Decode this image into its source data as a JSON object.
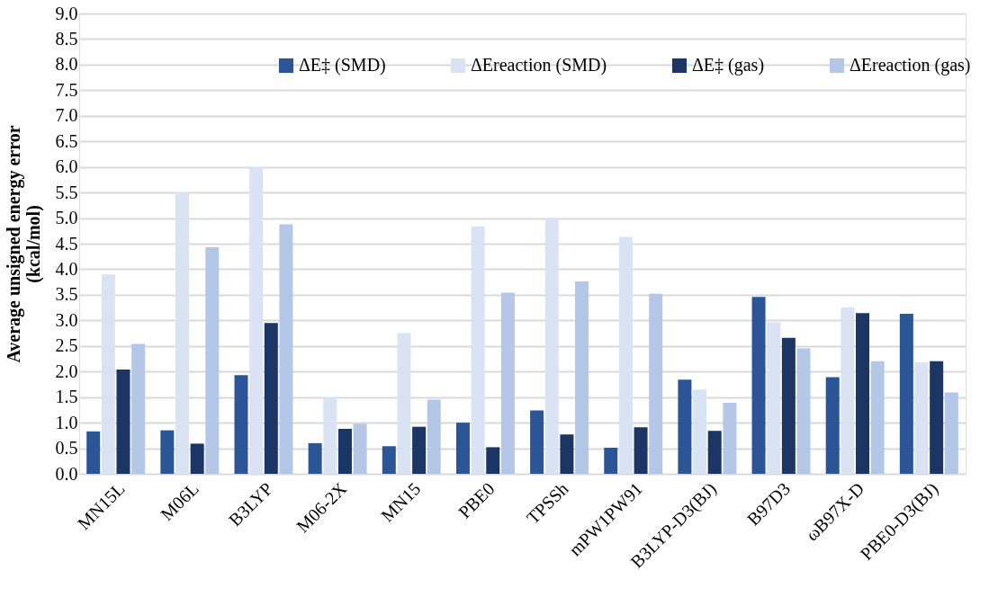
{
  "chart_data": {
    "type": "bar",
    "ylabel": "Average  unsigned energy error\n(kcal/mol)",
    "categories": [
      "MN15L",
      "M06L",
      "B3LYP",
      "M06-2X",
      "MN15",
      "PBE0",
      "TPSSh",
      "mPW1PW91",
      "B3LYP-D3(BJ)",
      "B97D3",
      "ωB97X-D",
      "PBE0-D3(BJ)"
    ],
    "series": [
      {
        "name": "ΔE‡ (SMD)",
        "color": "#2b5597",
        "values": [
          0.83,
          0.85,
          1.93,
          0.6,
          0.54,
          1.0,
          1.24,
          0.51,
          1.84,
          3.46,
          1.89,
          3.13
        ]
      },
      {
        "name": "ΔEreaction (SMD)",
        "color": "#dae3f3",
        "values": [
          3.9,
          5.5,
          6.0,
          1.5,
          2.75,
          4.84,
          5.0,
          4.63,
          1.65,
          2.96,
          3.25,
          2.18
        ]
      },
      {
        "name": "ΔE‡ (gas)",
        "color": "#1b3664",
        "values": [
          2.04,
          0.59,
          2.95,
          0.88,
          0.92,
          0.52,
          0.77,
          0.91,
          0.84,
          2.66,
          3.14,
          2.2
        ]
      },
      {
        "name": "ΔEreaction (gas)",
        "color": "#b4c7e7",
        "values": [
          2.54,
          4.43,
          4.88,
          0.98,
          1.45,
          3.54,
          3.76,
          3.52,
          1.39,
          2.45,
          2.2,
          1.59
        ]
      }
    ],
    "ylim": [
      0,
      9
    ],
    "yticks": [
      {
        "value": 0,
        "label": "0.0"
      },
      {
        "value": 0.5,
        "label": "0.5"
      },
      {
        "value": 1,
        "label": "1.0"
      },
      {
        "value": 1.5,
        "label": "1.5"
      },
      {
        "value": 2,
        "label": "2.0"
      },
      {
        "value": 2.5,
        "label": "2.5"
      },
      {
        "value": 3,
        "label": "3.0"
      },
      {
        "value": 3.5,
        "label": "3.5"
      },
      {
        "value": 4,
        "label": "4.0"
      },
      {
        "value": 4.5,
        "label": "4.5"
      },
      {
        "value": 5,
        "label": "5.0"
      },
      {
        "value": 5.5,
        "label": "5.5"
      },
      {
        "value": 6,
        "label": "6.0"
      },
      {
        "value": 6.5,
        "label": "6.5"
      },
      {
        "value": 7,
        "label": "7.0"
      },
      {
        "value": 7.5,
        "label": "7.5"
      },
      {
        "value": 8,
        "label": "8.0"
      },
      {
        "value": 8.5,
        "label": "8.5"
      },
      {
        "value": 9,
        "label": "9.0"
      }
    ],
    "grid": "y",
    "legend": "top"
  }
}
